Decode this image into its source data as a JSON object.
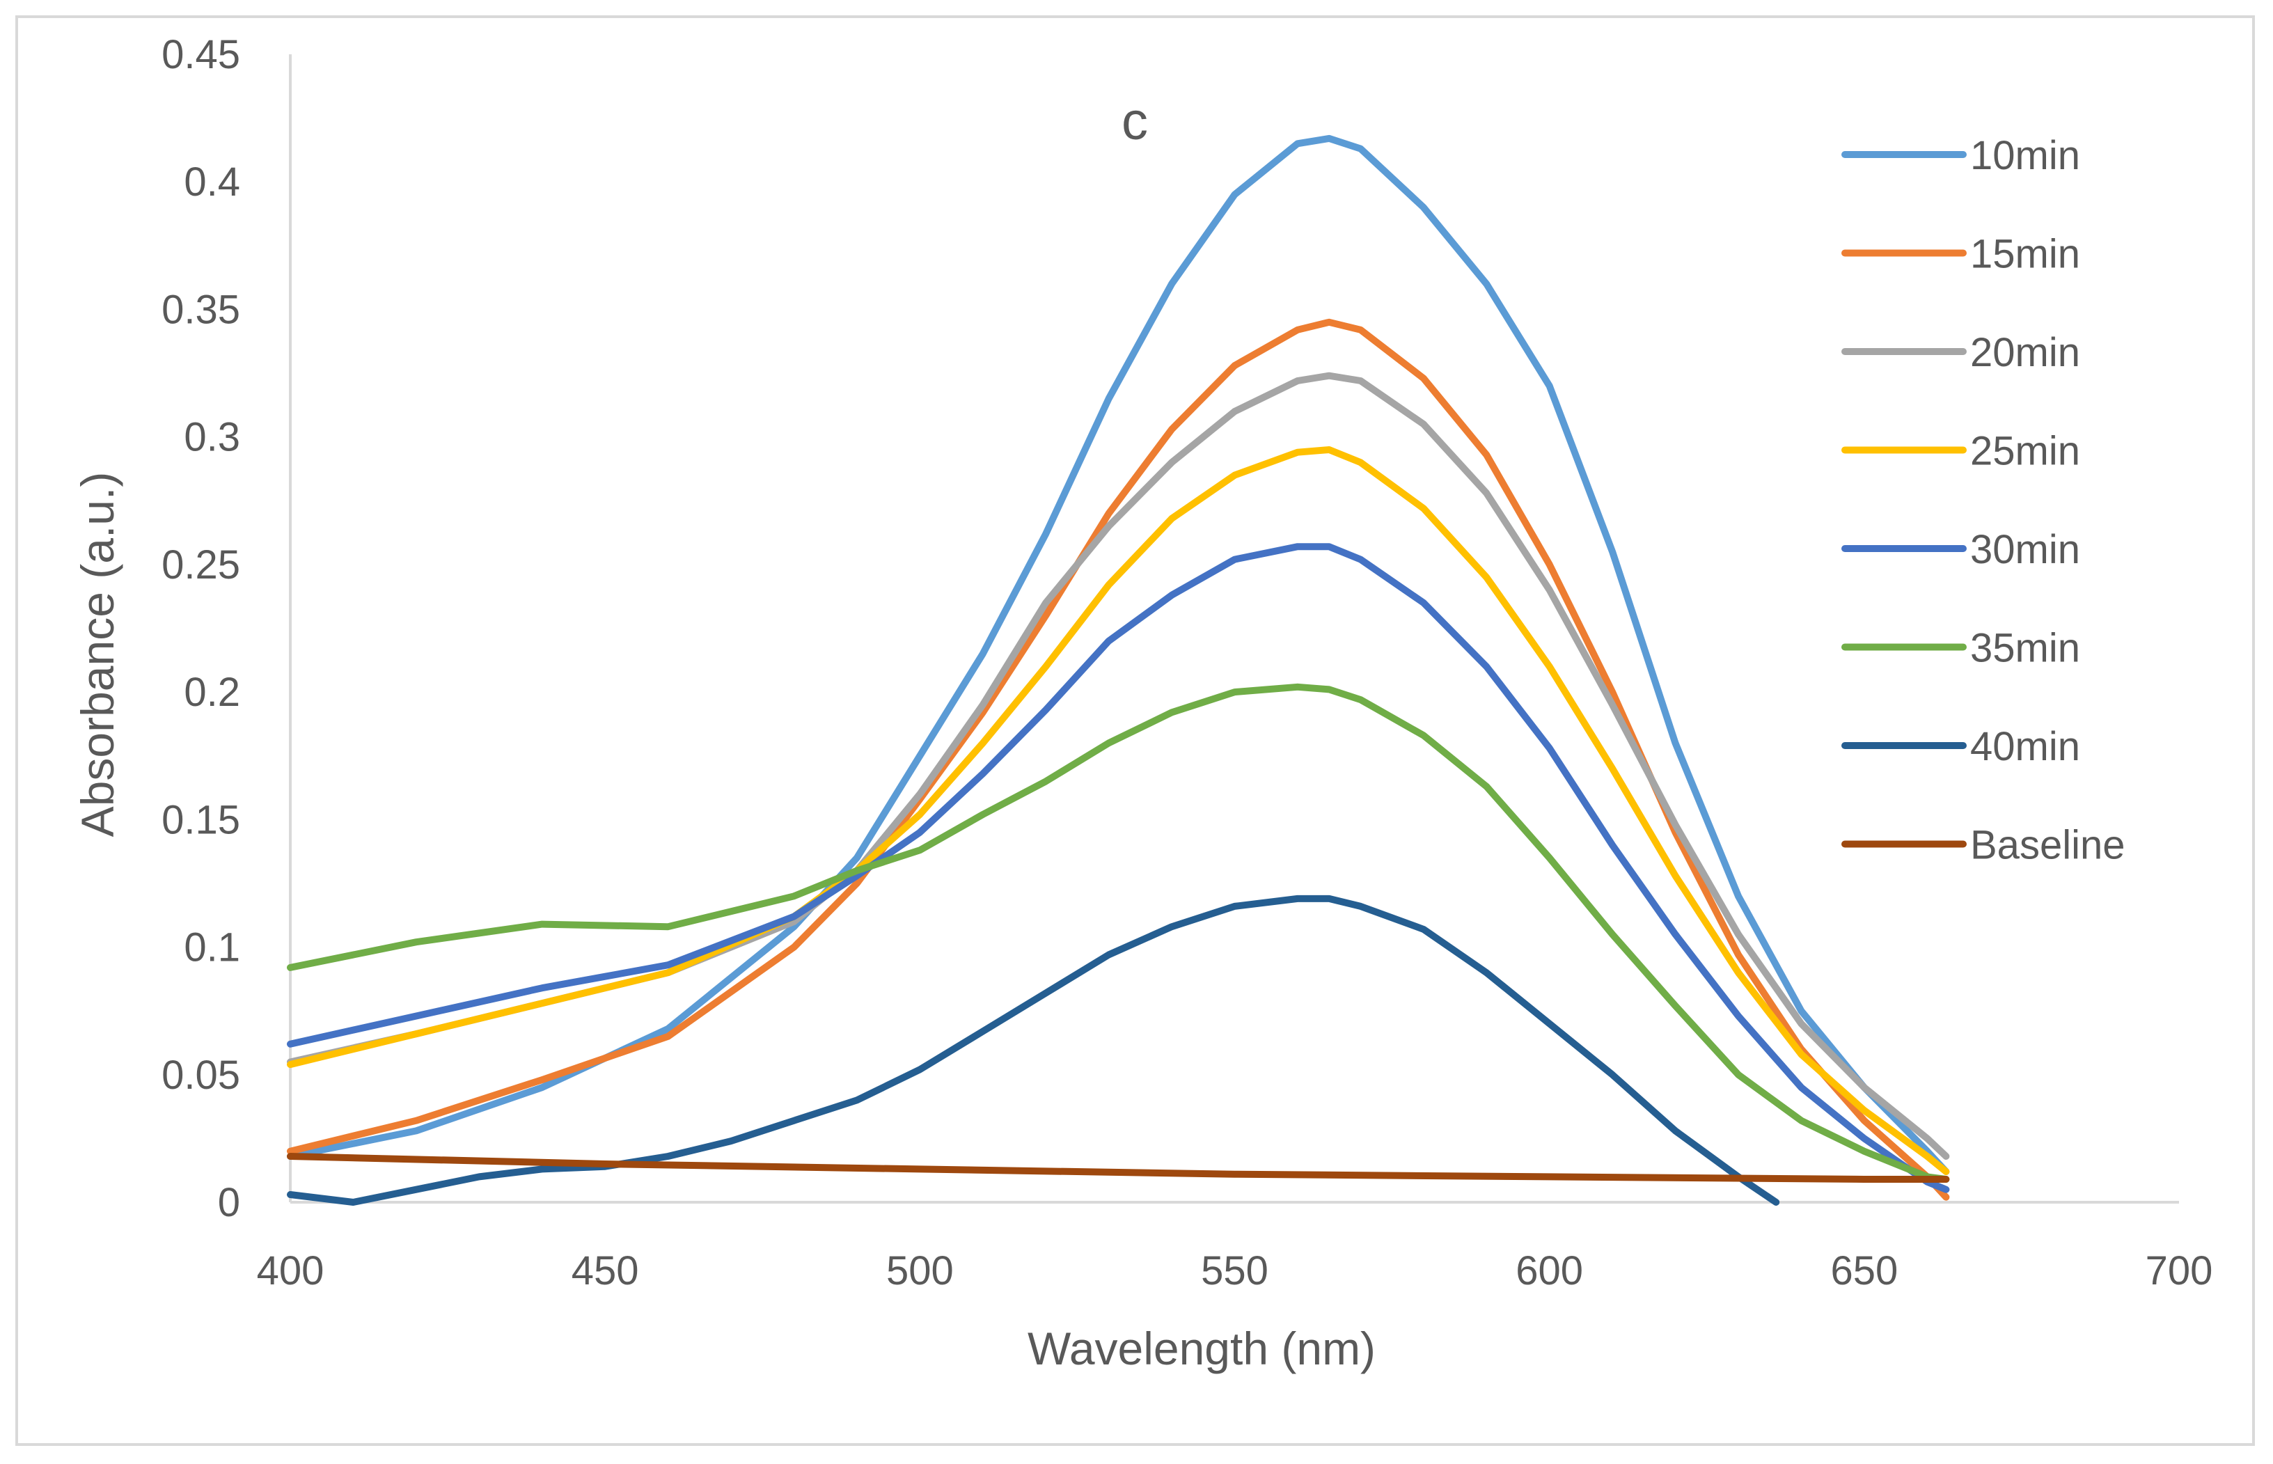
{
  "chart_data": {
    "type": "line",
    "title": "c",
    "xlabel": "Wavelength (nm)",
    "ylabel": "Absorbance  (a.u.)",
    "xlim": [
      400,
      700
    ],
    "ylim": [
      0,
      0.45
    ],
    "xticks": [
      400,
      450,
      500,
      550,
      600,
      650,
      700
    ],
    "xtick_labels": [
      "400",
      "450",
      "500",
      "550",
      "600",
      "650",
      "700"
    ],
    "yticks": [
      0,
      0.05,
      0.1,
      0.15,
      0.2,
      0.25,
      0.3,
      0.35,
      0.4,
      0.45
    ],
    "ytick_labels": [
      "0",
      "0.05",
      "0.1",
      "0.15",
      "0.2",
      "0.25",
      "0.3",
      "0.35",
      "0.4",
      "0.45"
    ],
    "grid": false,
    "legend_position": "right",
    "series": [
      {
        "name": "10min",
        "color": "#5B9BD5",
        "x": [
          400,
          420,
          440,
          460,
          480,
          490,
          500,
          510,
          520,
          530,
          540,
          550,
          560,
          565,
          570,
          580,
          590,
          600,
          610,
          620,
          630,
          640,
          650,
          660,
          663
        ],
        "y": [
          0.018,
          0.028,
          0.045,
          0.068,
          0.108,
          0.135,
          0.175,
          0.215,
          0.262,
          0.315,
          0.36,
          0.395,
          0.415,
          0.417,
          0.413,
          0.39,
          0.36,
          0.32,
          0.255,
          0.18,
          0.12,
          0.075,
          0.045,
          0.02,
          0.012
        ]
      },
      {
        "name": "15min",
        "color": "#ED7D31",
        "x": [
          400,
          420,
          440,
          460,
          480,
          490,
          500,
          510,
          520,
          530,
          540,
          550,
          560,
          565,
          570,
          580,
          590,
          600,
          610,
          620,
          630,
          640,
          650,
          660,
          663
        ],
        "y": [
          0.02,
          0.032,
          0.048,
          0.065,
          0.1,
          0.125,
          0.158,
          0.192,
          0.23,
          0.27,
          0.303,
          0.328,
          0.342,
          0.345,
          0.342,
          0.323,
          0.293,
          0.25,
          0.2,
          0.145,
          0.097,
          0.06,
          0.032,
          0.01,
          0.002
        ]
      },
      {
        "name": "20min",
        "color": "#A5A5A5",
        "x": [
          400,
          420,
          440,
          460,
          480,
          490,
          500,
          510,
          520,
          530,
          540,
          550,
          560,
          565,
          570,
          580,
          590,
          600,
          610,
          620,
          630,
          640,
          650,
          660,
          663
        ],
        "y": [
          0.055,
          0.066,
          0.078,
          0.09,
          0.11,
          0.13,
          0.16,
          0.195,
          0.235,
          0.265,
          0.29,
          0.31,
          0.322,
          0.324,
          0.322,
          0.305,
          0.278,
          0.24,
          0.195,
          0.148,
          0.105,
          0.07,
          0.045,
          0.025,
          0.018
        ]
      },
      {
        "name": "25min",
        "color": "#FFC000",
        "x": [
          400,
          420,
          440,
          460,
          480,
          490,
          500,
          510,
          520,
          530,
          540,
          550,
          560,
          565,
          570,
          580,
          590,
          600,
          610,
          620,
          630,
          640,
          650,
          660,
          663
        ],
        "y": [
          0.054,
          0.066,
          0.078,
          0.09,
          0.112,
          0.13,
          0.152,
          0.18,
          0.21,
          0.242,
          0.268,
          0.285,
          0.294,
          0.295,
          0.29,
          0.272,
          0.245,
          0.21,
          0.17,
          0.128,
          0.09,
          0.058,
          0.036,
          0.018,
          0.012
        ]
      },
      {
        "name": "30min",
        "color": "#4472C4",
        "x": [
          400,
          420,
          440,
          460,
          480,
          490,
          500,
          510,
          520,
          530,
          540,
          550,
          560,
          565,
          570,
          580,
          590,
          600,
          610,
          620,
          630,
          640,
          650,
          660,
          663
        ],
        "y": [
          0.062,
          0.073,
          0.084,
          0.093,
          0.112,
          0.128,
          0.145,
          0.168,
          0.193,
          0.22,
          0.238,
          0.252,
          0.257,
          0.257,
          0.252,
          0.235,
          0.21,
          0.178,
          0.14,
          0.105,
          0.073,
          0.045,
          0.025,
          0.008,
          0.005
        ]
      },
      {
        "name": "35min",
        "color": "#70AD47",
        "x": [
          400,
          420,
          440,
          460,
          480,
          490,
          500,
          510,
          520,
          530,
          540,
          550,
          560,
          565,
          570,
          580,
          590,
          600,
          610,
          620,
          630,
          640,
          650,
          660,
          663
        ],
        "y": [
          0.092,
          0.102,
          0.109,
          0.108,
          0.12,
          0.13,
          0.138,
          0.152,
          0.165,
          0.18,
          0.192,
          0.2,
          0.202,
          0.201,
          0.197,
          0.183,
          0.163,
          0.135,
          0.105,
          0.077,
          0.05,
          0.032,
          0.02,
          0.01,
          0.009
        ]
      },
      {
        "name": "40min",
        "color": "#255E91",
        "x": [
          400,
          410,
          420,
          430,
          440,
          450,
          460,
          470,
          480,
          490,
          500,
          510,
          520,
          530,
          540,
          550,
          560,
          565,
          570,
          580,
          590,
          600,
          610,
          620,
          630,
          636
        ],
        "y": [
          0.003,
          0.0,
          0.005,
          0.01,
          0.013,
          0.014,
          0.018,
          0.024,
          0.032,
          0.04,
          0.052,
          0.067,
          0.082,
          0.097,
          0.108,
          0.116,
          0.119,
          0.119,
          0.116,
          0.107,
          0.09,
          0.07,
          0.05,
          0.028,
          0.01,
          0.0
        ]
      },
      {
        "name": "Baseline",
        "color": "#9E480E",
        "x": [
          400,
          450,
          500,
          550,
          600,
          650,
          663
        ],
        "y": [
          0.018,
          0.015,
          0.013,
          0.011,
          0.01,
          0.009,
          0.009
        ]
      }
    ]
  }
}
